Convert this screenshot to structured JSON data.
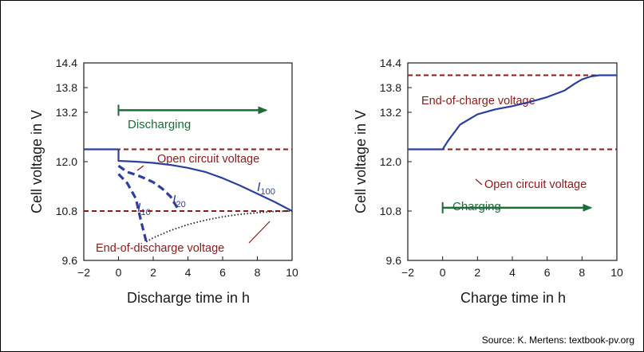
{
  "source": "Source: K. Mertens: textbook-pv.org",
  "colors": {
    "curve": "#2d3f9e",
    "reference": "#8b1a1a",
    "arrow": "#1e6b3a",
    "axis": "#1a1a1a"
  },
  "chart_data": [
    {
      "type": "line",
      "title": "",
      "xlabel": "Discharge time in h",
      "ylabel": "Cell voltage in V",
      "xlim": [
        -2,
        10
      ],
      "ylim": [
        9.6,
        14.4
      ],
      "xticks": [
        "−2",
        "0",
        "2",
        "4",
        "6",
        "8",
        "10"
      ],
      "yticks": [
        "9.6",
        "10.8",
        "12.0",
        "13.2",
        "13.8",
        "14.4"
      ],
      "xtick_values": [
        -2,
        0,
        2,
        4,
        6,
        8,
        10
      ],
      "ytick_values": [
        9.6,
        10.8,
        12.0,
        13.2,
        13.8,
        14.4
      ],
      "reference_lines": [
        {
          "label": "Open circuit voltage",
          "y": 12.3
        },
        {
          "label": "End-of-discharge voltage",
          "y": 10.8
        }
      ],
      "arrow": {
        "label": "Discharging",
        "x_start": 0,
        "x_end": 8.5,
        "y": 13.25
      },
      "series": [
        {
          "name": "I",
          "subscript": "100",
          "style": "solid",
          "x": [
            -2,
            0,
            0,
            1,
            2,
            3,
            4,
            5,
            6,
            7,
            8,
            9,
            10
          ],
          "y": [
            12.3,
            12.3,
            12.02,
            12.0,
            11.97,
            11.92,
            11.85,
            11.75,
            11.6,
            11.42,
            11.22,
            11.02,
            10.8
          ]
        },
        {
          "name": "I",
          "subscript": "20",
          "style": "dash",
          "x": [
            0,
            0.5,
            1,
            1.5,
            2,
            2.5,
            3,
            3.5
          ],
          "y": [
            11.9,
            11.75,
            11.68,
            11.6,
            11.5,
            11.35,
            11.15,
            10.8
          ]
        },
        {
          "name": "I",
          "subscript": "10",
          "style": "dash",
          "x": [
            0,
            0.5,
            1,
            1.3,
            1.6
          ],
          "y": [
            11.7,
            11.48,
            11.1,
            10.55,
            10.05
          ]
        },
        {
          "name": "",
          "style": "dot",
          "x": [
            1.6,
            2,
            3,
            4,
            5,
            6,
            7,
            8,
            9,
            10
          ],
          "y": [
            10.05,
            10.15,
            10.33,
            10.47,
            10.58,
            10.66,
            10.72,
            10.76,
            10.79,
            10.8
          ]
        }
      ]
    },
    {
      "type": "line",
      "title": "",
      "xlabel": "Charge time in h",
      "ylabel": "Cell voltage in V",
      "xlim": [
        -2,
        10
      ],
      "ylim": [
        9.6,
        14.4
      ],
      "xticks": [
        "−2",
        "0",
        "2",
        "4",
        "6",
        "8",
        "10"
      ],
      "yticks": [
        "9.6",
        "10.8",
        "12.0",
        "13.2",
        "13.8",
        "14.4"
      ],
      "xtick_values": [
        -2,
        0,
        2,
        4,
        6,
        8,
        10
      ],
      "ytick_values": [
        9.6,
        10.8,
        12.0,
        13.2,
        13.8,
        14.4
      ],
      "reference_lines": [
        {
          "label": "End-of-charge voltage",
          "y": 14.1
        },
        {
          "label": "Open circuit voltage",
          "y": 12.3
        }
      ],
      "arrow": {
        "label": "Charging",
        "x_start": 0,
        "x_end": 8.5,
        "y": 10.88
      },
      "series": [
        {
          "name": "",
          "style": "solid",
          "x": [
            -2,
            0,
            0.3,
            1,
            2,
            3,
            4,
            5,
            6,
            7,
            7.6,
            8,
            8.5,
            9,
            9.5,
            10
          ],
          "y": [
            12.3,
            12.3,
            12.5,
            12.9,
            13.15,
            13.27,
            13.35,
            13.45,
            13.57,
            13.73,
            13.9,
            14.0,
            14.07,
            14.1,
            14.1,
            14.1
          ]
        }
      ]
    }
  ]
}
